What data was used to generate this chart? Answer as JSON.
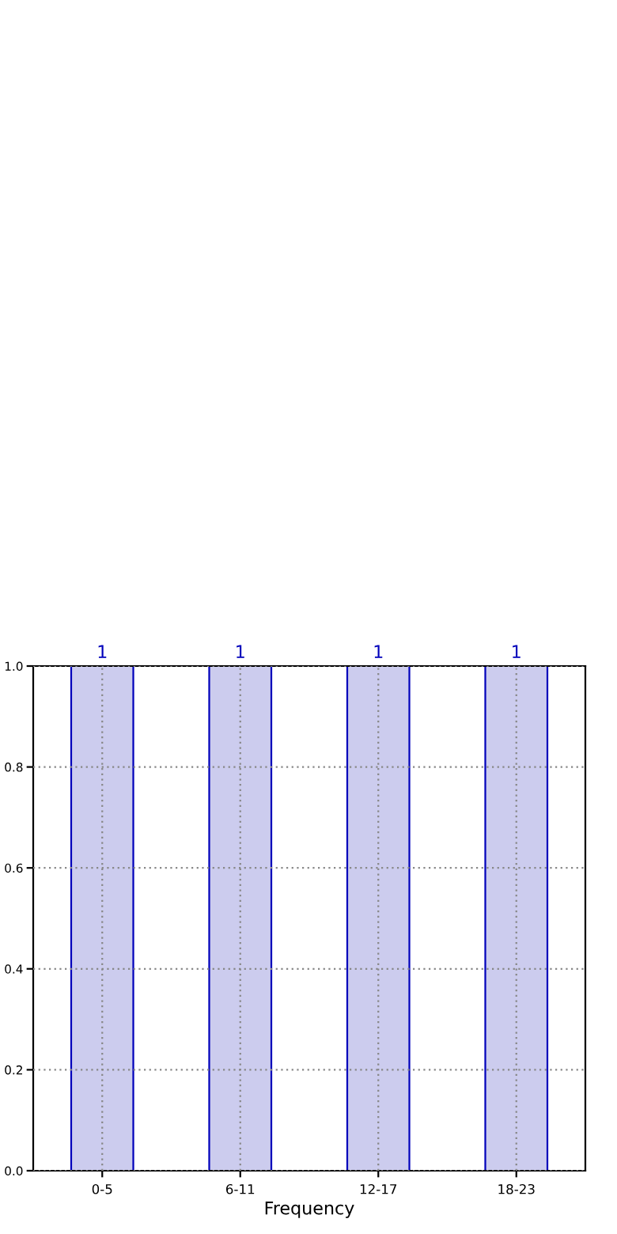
{
  "chart_data": {
    "type": "bar",
    "xlabel": "Frequency",
    "categories": [
      "0-5",
      "6-11",
      "12-17",
      "18-23"
    ],
    "values": [
      1,
      1,
      1,
      1
    ],
    "color": "#ccccee",
    "ylim": [
      0,
      1
    ],
    "yticks": [
      {
        "value": 0,
        "label": "0.0"
      },
      {
        "value": 0.2,
        "label": "0.2"
      },
      {
        "value": 0.4,
        "label": "0.4"
      },
      {
        "value": 0.6,
        "label": "0.6"
      },
      {
        "value": 0.8,
        "label": "0.8"
      },
      {
        "value": 1,
        "label": "1.0"
      }
    ],
    "grid": true,
    "data_labels": true
  }
}
